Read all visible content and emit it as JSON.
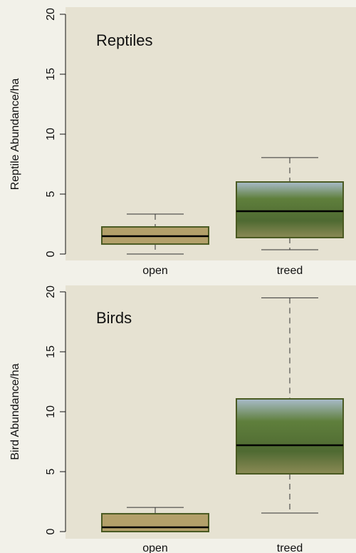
{
  "chart_data": [
    {
      "type": "box",
      "title": "Reptiles",
      "ylabel": "Reptile Abundance/ha",
      "categories": [
        "open",
        "treed"
      ],
      "boxes": [
        {
          "min": 0,
          "q1": 0.83,
          "median": 1.49,
          "q3": 2.26,
          "max": 3.33
        },
        {
          "min": 0.36,
          "q1": 1.37,
          "median": 3.57,
          "q3": 6.01,
          "max": 8.04
        }
      ],
      "colors": [
        "#b3a06a",
        "#6f8a4a"
      ],
      "ylim": [
        0,
        20
      ],
      "yticks": [
        0,
        5,
        10,
        15,
        20
      ]
    },
    {
      "type": "box",
      "title": "Birds",
      "ylabel": "Bird Abundance/ha",
      "categories": [
        "open",
        "treed"
      ],
      "boxes": [
        {
          "min": 0,
          "q1": 0,
          "median": 0.36,
          "q3": 1.49,
          "max": 2.02
        },
        {
          "min": 1.55,
          "q1": 4.82,
          "median": 7.2,
          "q3": 11.07,
          "max": 19.5
        }
      ],
      "colors": [
        "#b3a06a",
        "#6f8a4a"
      ],
      "ylim": [
        0,
        20
      ],
      "yticks": [
        0,
        5,
        10,
        15,
        20
      ]
    }
  ]
}
